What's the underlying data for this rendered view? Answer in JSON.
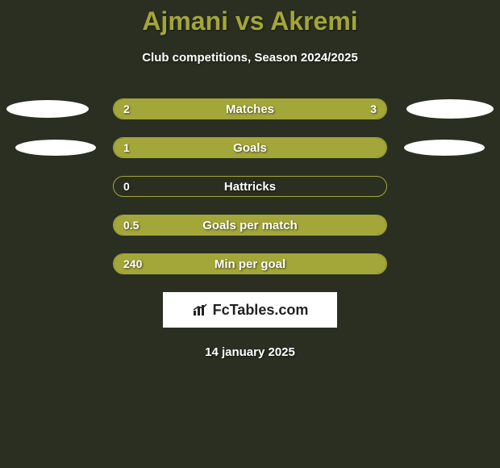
{
  "title": "Ajmani vs Akremi",
  "subtitle": "Club competitions, Season 2024/2025",
  "date": "14 january 2025",
  "logo": "FcTables.com",
  "colors": {
    "background": "#2a2f21",
    "accent": "#a3a638",
    "text": "#ffffff",
    "logo_bg": "#ffffff",
    "logo_text": "#222222"
  },
  "stats": [
    {
      "label": "Matches",
      "left_value": "2",
      "right_value": "3",
      "left_fill_pct": 40,
      "right_fill_pct": 60,
      "fill_mode": "split",
      "show_left_ellipse": true,
      "show_right_ellipse": true,
      "ellipse_row": 1
    },
    {
      "label": "Goals",
      "left_value": "1",
      "right_value": "",
      "left_fill_pct": 100,
      "right_fill_pct": 0,
      "fill_mode": "full",
      "show_left_ellipse": true,
      "show_right_ellipse": true,
      "ellipse_row": 2
    },
    {
      "label": "Hattricks",
      "left_value": "0",
      "right_value": "",
      "left_fill_pct": 0,
      "right_fill_pct": 0,
      "fill_mode": "none",
      "show_left_ellipse": false,
      "show_right_ellipse": false
    },
    {
      "label": "Goals per match",
      "left_value": "0.5",
      "right_value": "",
      "left_fill_pct": 100,
      "right_fill_pct": 0,
      "fill_mode": "full",
      "show_left_ellipse": false,
      "show_right_ellipse": false
    },
    {
      "label": "Min per goal",
      "left_value": "240",
      "right_value": "",
      "left_fill_pct": 100,
      "right_fill_pct": 0,
      "fill_mode": "full",
      "show_left_ellipse": false,
      "show_right_ellipse": false
    }
  ]
}
